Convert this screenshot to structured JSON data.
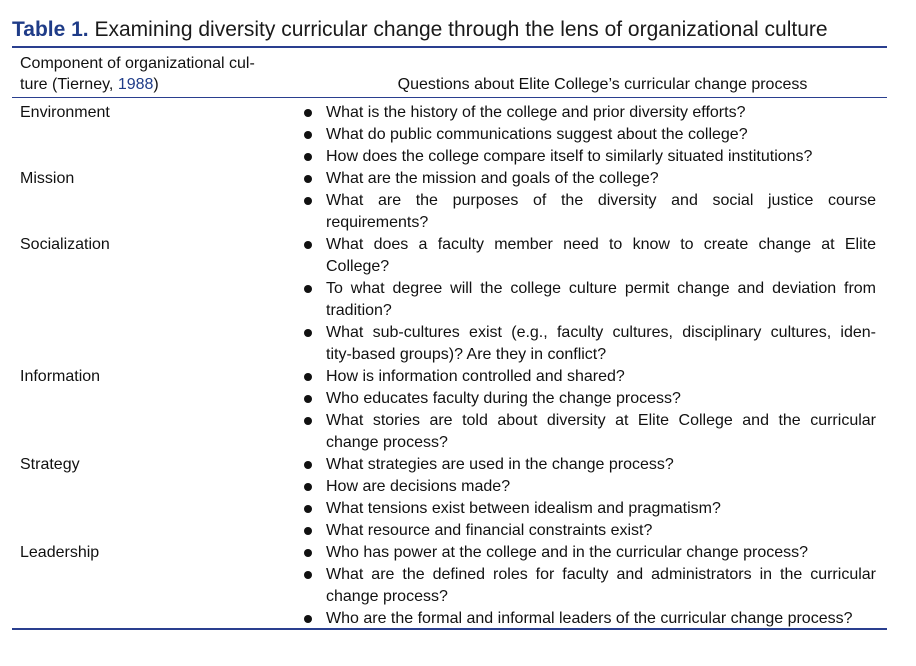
{
  "caption": {
    "label": "Table 1.",
    "title": "Examining diversity curricular change through the lens of organizational culture"
  },
  "header": {
    "left_line1": "Component of organizational cul-",
    "left_line2_prefix": "ture (Tierney, ",
    "left_line2_year": "1988",
    "left_line2_suffix": ")",
    "right": "Questions about Elite College’s curricular change process"
  },
  "rows": [
    {
      "component": "Environment",
      "questions": [
        [
          "What is the history of the college and prior diversity efforts?"
        ],
        [
          "What do public communications suggest about the college?"
        ],
        [
          "How does the college compare itself to similarly situated institutions?"
        ]
      ]
    },
    {
      "component": "Mission",
      "questions": [
        [
          "What are the mission and goals of the college?"
        ],
        [
          "What are the purposes of the diversity and social justice course",
          "requirements?"
        ]
      ]
    },
    {
      "component": "Socialization",
      "questions": [
        [
          "What does a faculty member need to know to create change at Elite",
          "College?"
        ],
        [
          "To what degree will the college culture permit change and deviation from",
          "tradition?"
        ],
        [
          "What sub-cultures exist (e.g., faculty cultures, disciplinary cultures, iden-",
          "tity-based groups)? Are they in conflict?"
        ]
      ]
    },
    {
      "component": "Information",
      "questions": [
        [
          "How is information controlled and shared?"
        ],
        [
          "Who educates faculty during the change process?"
        ],
        [
          "What stories are told about diversity at Elite College and the curricular",
          "change process?"
        ]
      ]
    },
    {
      "component": "Strategy",
      "questions": [
        [
          "What strategies are used in the change process?"
        ],
        [
          "How are decisions made?"
        ],
        [
          "What tensions exist between idealism and pragmatism?"
        ],
        [
          "What resource and financial constraints exist?"
        ]
      ]
    },
    {
      "component": "Leadership",
      "questions": [
        [
          "Who has power at the college and in the curricular change process?"
        ],
        [
          "What are the defined roles for faculty and administrators in the curricular",
          "change process?"
        ],
        [
          "Who are the formal and informal leaders of the curricular change process?"
        ]
      ]
    }
  ]
}
